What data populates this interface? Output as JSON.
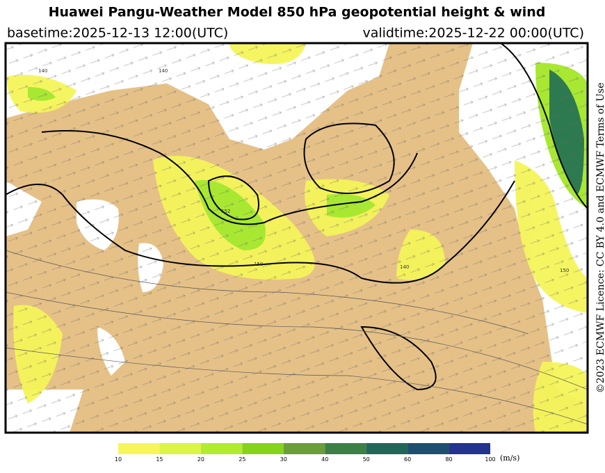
{
  "header": {
    "title": "Huawei Pangu-Weather Model 850 hPa geopotential height & wind",
    "basetime": "basetime:2025-12-13 12:00(UTC)",
    "validtime": "validtime:2025-12-22 00:00(UTC)"
  },
  "licence": "©2023 ECMWF  Licence: CC BY 4.0 and ECMWF  Terms of Use",
  "map": {
    "contour_labels": [
      "140",
      "152",
      "150",
      "140",
      "150",
      "140"
    ]
  },
  "colorbar": {
    "ticks": [
      10,
      15,
      20,
      25,
      30,
      40,
      50,
      60,
      80,
      100
    ],
    "colors": [
      "#f6f65a",
      "#dcf446",
      "#b2ec2e",
      "#86d31c",
      "#6a9e3a",
      "#3c8046",
      "#22665a",
      "#1e4f6e",
      "#22348e",
      "#2a2ea8"
    ],
    "unit": "(m/s)"
  }
}
